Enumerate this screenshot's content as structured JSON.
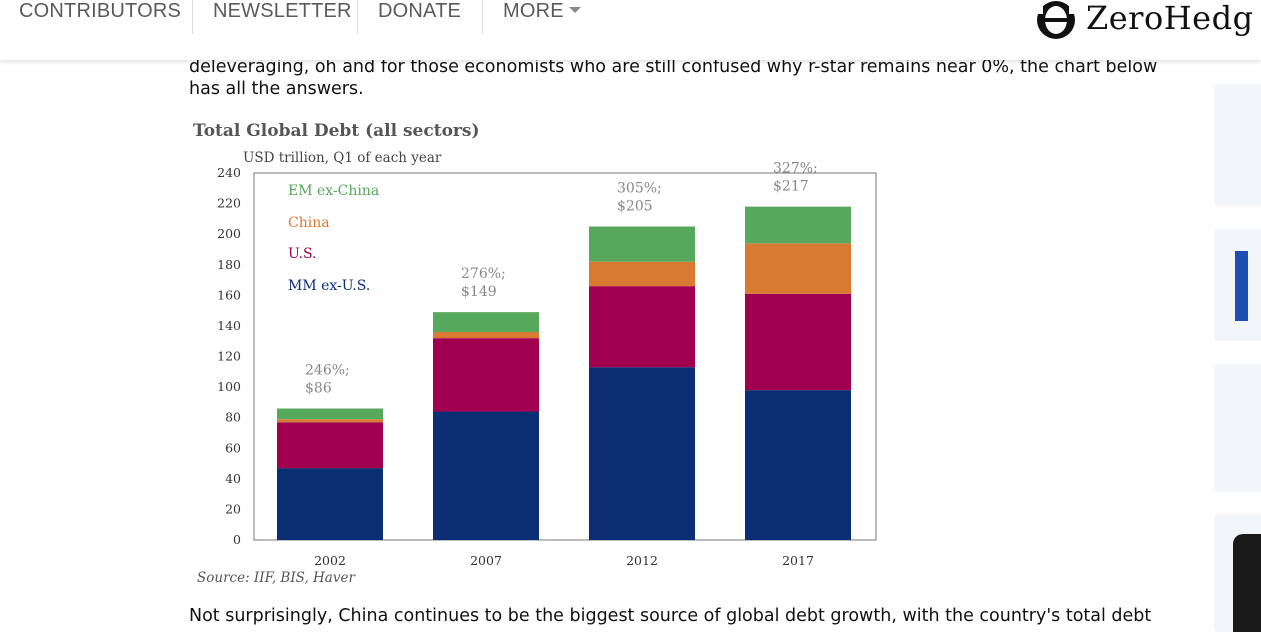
{
  "nav": {
    "items": [
      "CONTRIBUTORS",
      "NEWSLETTER",
      "DONATE",
      "MORE"
    ],
    "logo_text": "ZeroHedg"
  },
  "article": {
    "para1_line1": "deleveraging, oh and for those economists who are still confused why r-star remains near 0%, the chart  below",
    "para1_line2": "has all the answers.",
    "para2_line1": "Not surprisingly, China continues to be the biggest source of global debt growth, with the country's total debt"
  },
  "colors": {
    "em_ex_china": "#56a85c",
    "china": "#d97a32",
    "us": "#a0004f",
    "mm_ex_us": "#0b2d73"
  },
  "chart_data": {
    "type": "bar",
    "stacked": true,
    "title": "Total Global Debt (all sectors)",
    "subtitle": "USD trillion, Q1 of each year",
    "categories": [
      "2002",
      "2007",
      "2012",
      "2017"
    ],
    "series": [
      {
        "name": "MM ex-U.S.",
        "values": [
          47,
          84,
          113,
          98
        ]
      },
      {
        "name": "U.S.",
        "values": [
          30,
          48,
          53,
          63
        ]
      },
      {
        "name": "China",
        "values": [
          2,
          4,
          16,
          33
        ]
      },
      {
        "name": "EM ex-China",
        "values": [
          7,
          13,
          23,
          24
        ]
      }
    ],
    "annotations": [
      {
        "line1": "246%;",
        "line2": "$86"
      },
      {
        "line1": "276%;",
        "line2": "$149"
      },
      {
        "line1": "305%;",
        "line2": "$205"
      },
      {
        "line1": "327%;",
        "line2": "$217"
      }
    ],
    "yticks": [
      0,
      20,
      40,
      60,
      80,
      100,
      120,
      140,
      160,
      180,
      200,
      220,
      240
    ],
    "ylim": [
      0,
      240
    ],
    "legend_position": "top-left",
    "source": "Source: IIF, BIS, Haver"
  }
}
